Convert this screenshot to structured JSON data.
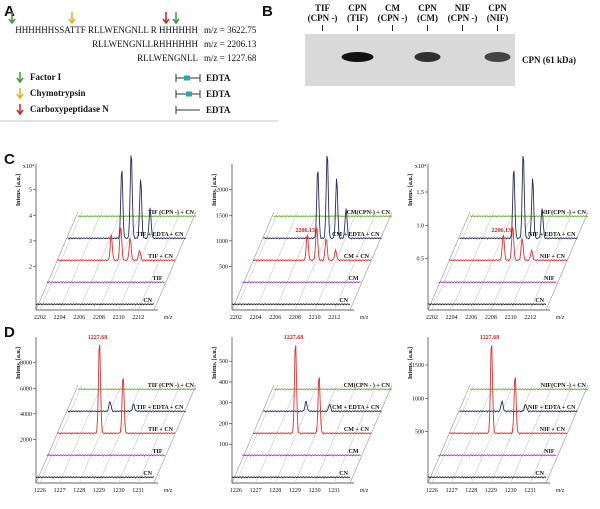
{
  "panel_a": {
    "label": "A",
    "peptides": [
      {
        "sequence": "HHHHHHSSATTF RLLWENGNLL R HHHHHH",
        "mz": "m/z = 3622.75"
      },
      {
        "sequence": "RLLWENGNLLRHHHHHH",
        "mz": "m/z = 2206.13"
      },
      {
        "sequence": "RLLWENGNLL",
        "mz": "m/z = 1227.68"
      }
    ],
    "enzymes": [
      {
        "name": "Factor I",
        "inhibitor": "EDTA"
      },
      {
        "name": "Chymotrypsin",
        "inhibitor": "EDTA"
      },
      {
        "name": "Carboxypeptidase N",
        "inhibitor": "EDTA"
      }
    ]
  },
  "panel_b": {
    "label": "B",
    "lanes": [
      {
        "name": "TIF",
        "detail": "(CPN -)"
      },
      {
        "name": "CPN",
        "detail": "(TIF)"
      },
      {
        "name": "CM",
        "detail": "(CPN -)"
      },
      {
        "name": "CPN",
        "detail": "(CM)"
      },
      {
        "name": "NIF",
        "detail": "(CPN -)"
      },
      {
        "name": "CPN",
        "detail": "(NIF)"
      }
    ],
    "band_label": "CPN (61 kDa)"
  },
  "panels": [
    {
      "label": "C",
      "plots": [
        {
          "y_label": "Intens. [a.u.]",
          "y_scale": "x10⁴",
          "y_ticks": [
            "2",
            "3",
            "4",
            "5"
          ],
          "x_ticks": [
            "2202",
            "2204",
            "2206",
            "2208",
            "2210",
            "2212"
          ],
          "x_unit": "m/z",
          "peak_label": null,
          "traces": [
            "TIF (CPN -) + CN",
            "TIF + EDTA + CN",
            "TIF + CN",
            "TIF",
            "CN"
          ]
        },
        {
          "y_label": "Intens. [a.u.]",
          "y_scale": null,
          "y_ticks": [
            "500",
            "1000",
            "1500",
            "2000"
          ],
          "x_ticks": [
            "2202",
            "2204",
            "2206",
            "2208",
            "2210",
            "2212"
          ],
          "x_unit": "m/z",
          "peak_label": "2206.13",
          "traces": [
            "CM(CPN-) + CN",
            "CM + EDTA + CN",
            "CM + CN",
            "CM",
            "CN"
          ]
        },
        {
          "y_label": "Intens. [a.u.]",
          "y_scale": "x10⁴",
          "y_ticks": [
            "0.5",
            "1.0",
            "1.5"
          ],
          "x_ticks": [
            "2202",
            "2204",
            "2206",
            "2208",
            "2210",
            "2212"
          ],
          "x_unit": "m/z",
          "peak_label": "2206.13",
          "traces": [
            "NIF(CPN -) + CN",
            "NIF + EDTA + CN",
            "NIF + CN",
            "NIF",
            "CN"
          ]
        }
      ]
    },
    {
      "label": "D",
      "plots": [
        {
          "y_label": "Intens. [a.u.]",
          "y_scale": null,
          "y_ticks": [
            "2000",
            "4000",
            "6000",
            "8000"
          ],
          "x_ticks": [
            "1226",
            "1227",
            "1228",
            "1229",
            "1230",
            "1231"
          ],
          "x_unit": "m/z",
          "peak_label": "1227.68",
          "traces": [
            "TIF (CPN -) + CN",
            "TIF + EDTA + CN",
            "TIF + CN",
            "TIF",
            "CN"
          ]
        },
        {
          "y_label": "Intens. [a.u.]",
          "y_scale": null,
          "y_ticks": [
            "100",
            "200",
            "300",
            "400",
            "500"
          ],
          "x_ticks": [
            "1226",
            "1227",
            "1228",
            "1229",
            "1230",
            "1231"
          ],
          "x_unit": "m/z",
          "peak_label": "1227.68",
          "traces": [
            "CM(CPN - ) + CN",
            "CM + EDTA + CN",
            "CM + CN",
            "CM",
            "CN"
          ]
        },
        {
          "y_label": "Intens. [a.u.]",
          "y_scale": null,
          "y_ticks": [
            "500",
            "1000",
            "1500"
          ],
          "x_ticks": [
            "1226",
            "1227",
            "1228",
            "1229",
            "1230",
            "1231"
          ],
          "x_unit": "m/z",
          "peak_label": "1227.68",
          "traces": [
            "NIF(CPN -) + CN",
            "NIF + EDTA + CN",
            "NIF + CN",
            "NIF",
            "CN"
          ]
        }
      ]
    }
  ]
}
